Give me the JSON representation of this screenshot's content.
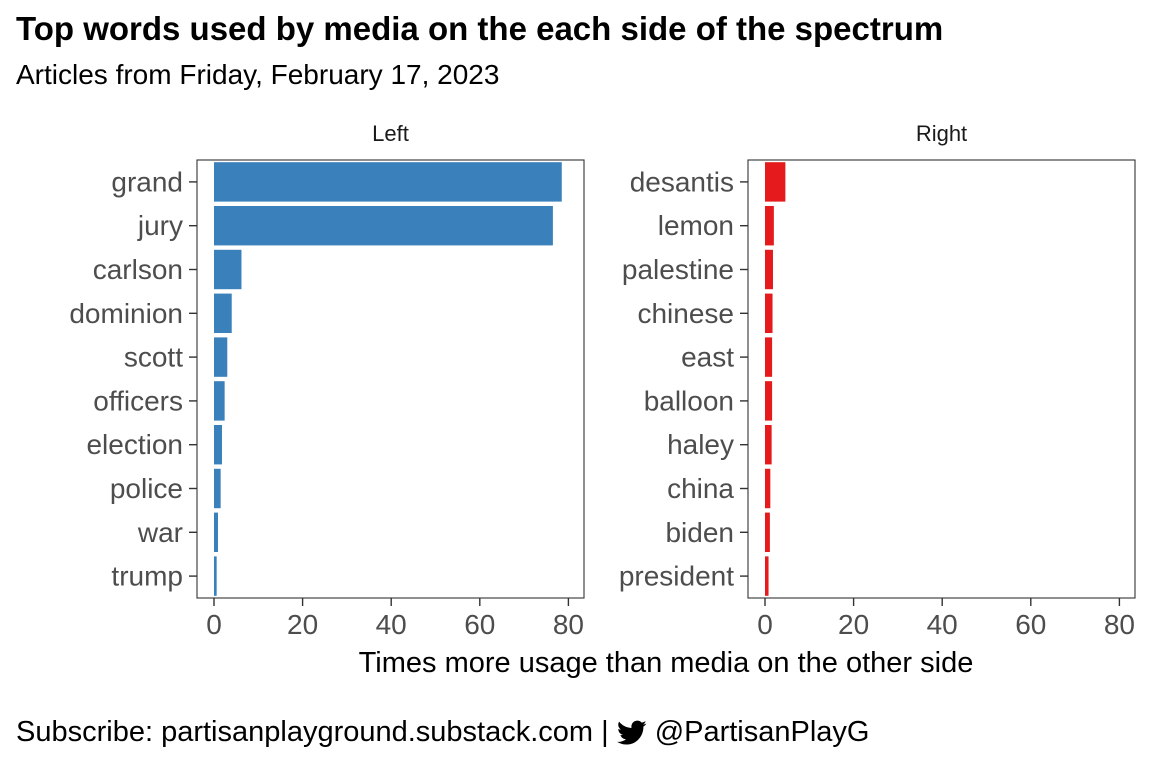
{
  "title": "Top words used by media on the each side of the spectrum",
  "subtitle": "Articles from Friday, February 17, 2023",
  "caption": {
    "text_before": "Subscribe: partisanplayground.substack.com |",
    "icon": "twitter-bird-icon",
    "text_after": "@PartisanPlayG"
  },
  "colors": {
    "left": "#3a80ba",
    "right": "#e41a1c"
  },
  "chart_data": {
    "type": "bar",
    "orientation": "horizontal",
    "xlabel": "Times more usage than media on the other side",
    "xlim": [
      0,
      80
    ],
    "xticks": [
      0,
      20,
      40,
      60,
      80
    ],
    "panels": [
      {
        "name": "Left",
        "categories": [
          "grand",
          "jury",
          "carlson",
          "dominion",
          "scott",
          "officers",
          "election",
          "police",
          "war",
          "trump"
        ],
        "values": [
          78.5,
          76.5,
          6.2,
          4.0,
          3.0,
          2.4,
          1.8,
          1.5,
          0.9,
          0.6
        ]
      },
      {
        "name": "Right",
        "categories": [
          "desantis",
          "lemon",
          "palestine",
          "chinese",
          "east",
          "balloon",
          "haley",
          "china",
          "biden",
          "president"
        ],
        "values": [
          4.6,
          2.0,
          1.8,
          1.7,
          1.6,
          1.6,
          1.5,
          1.2,
          1.1,
          0.8
        ]
      }
    ]
  }
}
